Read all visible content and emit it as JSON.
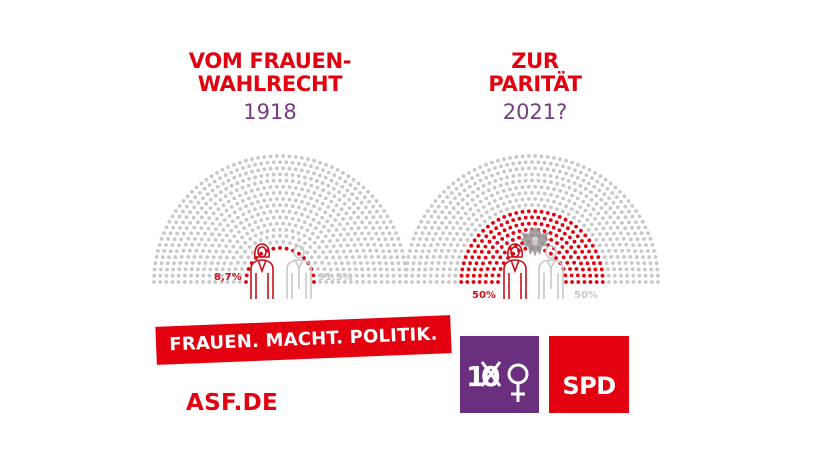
{
  "left": {
    "headline_line1": "VOM FRAUEN-",
    "headline_line2": "WAHLRECHT",
    "year": "1918",
    "women_label": "8,7%",
    "men_label": "91,3%",
    "women_share": 0.087
  },
  "right": {
    "headline_line1": "ZUR",
    "headline_line2": "PARITÄT",
    "year": "2021?",
    "women_label": "50%",
    "men_label": "50%",
    "women_share": 0.5
  },
  "banner": "FRAUEN. MACHT. POLITIK.",
  "website": "ASF.DE",
  "logo_100": {
    "text": "100",
    "icon": "venus-symbol-icon"
  },
  "logo_spd": {
    "text": "SPD"
  },
  "colors": {
    "red": "#e3000f",
    "dark_red": "#c8101c",
    "purple": "#7b3a86",
    "logo_purple": "#6b2f80",
    "gray": "#c8c8c8",
    "dark_gray": "#9a9a9a"
  }
}
